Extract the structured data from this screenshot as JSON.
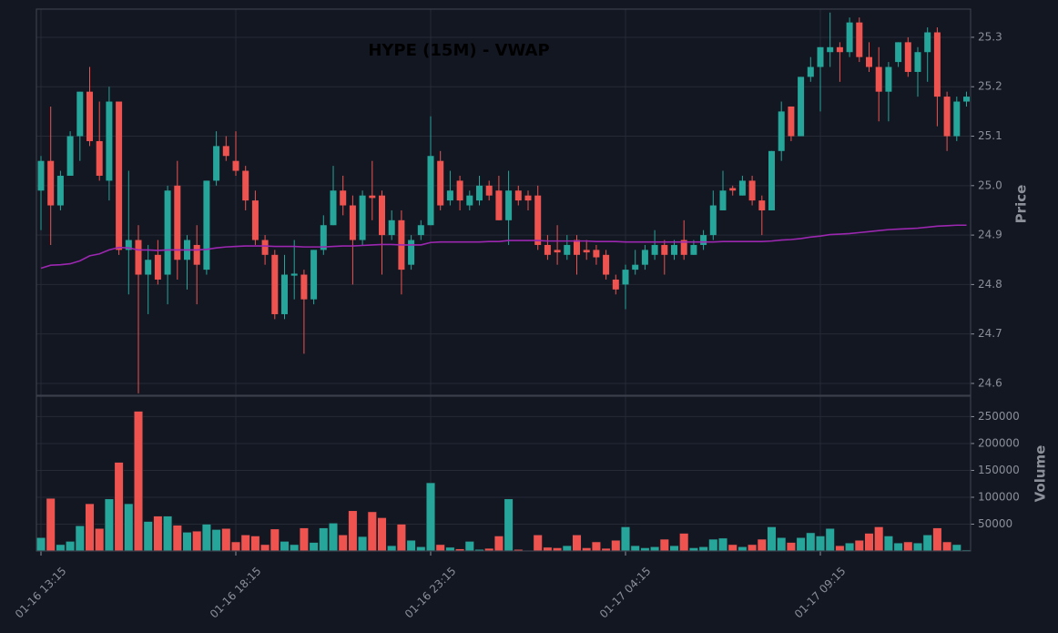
{
  "chart_data": [
    {
      "type": "candlestick",
      "title": "HYPE (15M) - VWAP",
      "ylabel": "Price",
      "categories": [
        "01-16 13:15",
        null,
        null,
        null,
        null,
        null,
        null,
        null,
        null,
        null,
        null,
        null,
        null,
        null,
        null,
        null,
        null,
        null,
        null,
        null,
        "01-16 18:15",
        null,
        null,
        null,
        null,
        null,
        null,
        null,
        null,
        null,
        null,
        null,
        null,
        null,
        null,
        null,
        null,
        null,
        null,
        null,
        "01-16 23:15",
        null,
        null,
        null,
        null,
        null,
        null,
        null,
        null,
        null,
        null,
        null,
        null,
        null,
        null,
        null,
        null,
        null,
        null,
        null,
        "01-17 04:15",
        null,
        null,
        null,
        null,
        null,
        null,
        null,
        null,
        null,
        null,
        null,
        null,
        null,
        null,
        null,
        null,
        null,
        null,
        null,
        "01-17 09:15",
        null,
        null,
        null,
        null,
        null,
        null,
        null,
        null,
        null,
        null,
        null,
        null,
        null,
        null,
        null
      ],
      "open": [
        24.99,
        25.05,
        24.96,
        25.02,
        25.1,
        25.19,
        25.09,
        25.01,
        25.17,
        24.87,
        24.89,
        24.82,
        24.86,
        24.82,
        25.0,
        24.85,
        24.88,
        24.83,
        25.01,
        25.08,
        25.05,
        25.03,
        24.97,
        24.89,
        24.86,
        24.74,
        24.818,
        24.82,
        24.77,
        24.87,
        24.92,
        24.99,
        24.96,
        24.89,
        24.98,
        24.98,
        24.9,
        24.93,
        24.84,
        24.9,
        24.92,
        25.05,
        24.97,
        25.01,
        24.96,
        24.97,
        25.0,
        24.99,
        24.93,
        24.99,
        24.98,
        24.98,
        24.88,
        24.87,
        24.86,
        24.89,
        24.87,
        24.87,
        24.86,
        24.81,
        24.8,
        24.83,
        24.84,
        24.86,
        24.88,
        24.86,
        24.89,
        24.86,
        24.88,
        24.9,
        24.95,
        24.995,
        24.98,
        25.01,
        24.97,
        24.95,
        25.07,
        25.16,
        25.1,
        25.22,
        25.24,
        25.27,
        25.28,
        25.27,
        25.33,
        25.26,
        25.24,
        25.19,
        25.25,
        25.29,
        25.23,
        25.27,
        25.31,
        25.18,
        25.1,
        25.17
      ],
      "high": [
        25.06,
        25.16,
        25.03,
        25.11,
        25.19,
        25.24,
        25.17,
        25.2,
        25.17,
        25.03,
        24.92,
        24.88,
        24.89,
        25.0,
        25.05,
        24.9,
        24.92,
        25.01,
        25.11,
        25.1,
        25.11,
        25.04,
        24.99,
        24.9,
        24.87,
        24.86,
        24.89,
        24.83,
        24.87,
        24.94,
        25.04,
        25.02,
        24.98,
        24.99,
        25.05,
        24.99,
        24.95,
        24.95,
        24.9,
        24.93,
        25.14,
        25.07,
        25.03,
        25.02,
        24.99,
        25.02,
        25.01,
        25.02,
        25.03,
        25.0,
        24.99,
        25.0,
        24.9,
        24.92,
        24.9,
        24.9,
        24.89,
        24.88,
        24.87,
        24.82,
        24.84,
        24.87,
        24.88,
        24.91,
        24.89,
        24.89,
        24.93,
        24.89,
        24.91,
        24.99,
        25.03,
        25.0,
        25.02,
        25.02,
        24.98,
        25.07,
        25.17,
        25.16,
        25.22,
        25.26,
        25.28,
        25.35,
        25.29,
        25.34,
        25.34,
        25.29,
        25.28,
        25.25,
        25.29,
        25.3,
        25.28,
        25.32,
        25.32,
        25.19,
        25.18,
        25.19
      ],
      "low": [
        24.91,
        24.88,
        24.95,
        25.02,
        25.05,
        25.08,
        25.01,
        24.97,
        24.86,
        24.78,
        24.58,
        24.74,
        24.8,
        24.76,
        24.81,
        24.79,
        24.76,
        24.82,
        25.0,
        25.05,
        25.02,
        24.95,
        24.88,
        24.84,
        24.73,
        24.73,
        24.77,
        24.66,
        24.76,
        24.86,
        24.92,
        24.94,
        24.8,
        24.88,
        24.93,
        24.82,
        24.89,
        24.78,
        24.83,
        24.89,
        24.92,
        24.95,
        24.96,
        24.95,
        24.95,
        24.96,
        24.97,
        24.93,
        24.88,
        24.96,
        24.95,
        24.87,
        24.85,
        24.84,
        24.85,
        24.82,
        24.85,
        24.84,
        24.81,
        24.78,
        24.75,
        24.82,
        24.83,
        24.85,
        24.82,
        24.85,
        24.85,
        24.86,
        24.87,
        24.89,
        24.95,
        24.98,
        24.98,
        24.96,
        24.9,
        24.95,
        25.05,
        25.09,
        25.1,
        25.21,
        25.15,
        25.24,
        25.21,
        25.26,
        25.25,
        25.23,
        25.13,
        25.13,
        25.24,
        25.22,
        25.18,
        25.21,
        25.12,
        25.07,
        25.09,
        25.16
      ],
      "close": [
        25.05,
        24.96,
        25.02,
        25.1,
        25.19,
        25.09,
        25.02,
        25.17,
        24.87,
        24.89,
        24.82,
        24.85,
        24.81,
        24.99,
        24.85,
        24.89,
        24.84,
        25.01,
        25.08,
        25.06,
        25.03,
        24.97,
        24.89,
        24.86,
        24.74,
        24.82,
        24.822,
        24.77,
        24.87,
        24.92,
        24.99,
        24.96,
        24.89,
        24.98,
        24.975,
        24.9,
        24.93,
        24.83,
        24.89,
        24.92,
        25.06,
        24.96,
        24.99,
        24.97,
        24.98,
        25.0,
        24.98,
        24.93,
        24.99,
        24.97,
        24.97,
        24.88,
        24.86,
        24.865,
        24.88,
        24.86,
        24.865,
        24.855,
        24.82,
        24.79,
        24.83,
        24.84,
        24.87,
        24.88,
        24.86,
        24.88,
        24.86,
        24.88,
        24.9,
        24.96,
        24.99,
        24.99,
        25.01,
        24.97,
        24.95,
        25.07,
        25.15,
        25.1,
        25.22,
        25.24,
        25.28,
        25.28,
        25.27,
        25.33,
        25.26,
        25.24,
        25.19,
        25.24,
        25.29,
        25.23,
        25.27,
        25.31,
        25.18,
        25.1,
        25.17,
        25.18
      ],
      "up_color": "#26a69a",
      "down_color": "#ef5350",
      "series": [
        {
          "color": "#9c27b0",
          "values": [
            24.833,
            24.839,
            24.84,
            24.842,
            24.848,
            24.858,
            24.862,
            24.87,
            24.875,
            24.874,
            24.87,
            24.87,
            24.869,
            24.87,
            24.87,
            24.87,
            24.87,
            24.871,
            24.874,
            24.876,
            24.877,
            24.878,
            24.878,
            24.878,
            24.877,
            24.877,
            24.877,
            24.876,
            24.876,
            24.876,
            24.877,
            24.878,
            24.878,
            24.879,
            24.88,
            24.881,
            24.881,
            24.88,
            24.88,
            24.88,
            24.885,
            24.886,
            24.886,
            24.886,
            24.886,
            24.886,
            24.887,
            24.887,
            24.889,
            24.889,
            24.889,
            24.889,
            24.888,
            24.888,
            24.888,
            24.888,
            24.888,
            24.887,
            24.887,
            24.887,
            24.886,
            24.886,
            24.886,
            24.886,
            24.886,
            24.886,
            24.886,
            24.886,
            24.886,
            24.886,
            24.887,
            24.887,
            24.887,
            24.887,
            24.887,
            24.888,
            24.89,
            24.891,
            24.893,
            24.896,
            24.898,
            24.901,
            24.902,
            24.903,
            24.905,
            24.907,
            24.909,
            24.911,
            24.912,
            24.913,
            24.914,
            24.916,
            24.918,
            24.919,
            24.92,
            24.92
          ]
        }
      ],
      "ylim": [
        24.576,
        25.357
      ],
      "yticks": [
        24.6,
        24.7,
        24.8,
        24.9,
        {
          "value": 25,
          "label": "25.0"
        },
        25.1,
        25.2,
        25.3
      ],
      "grid": true
    },
    {
      "type": "bar",
      "ylabel": "Volume",
      "values": [
        25000,
        98000,
        12000,
        18000,
        47000,
        88000,
        42000,
        97000,
        165000,
        88000,
        260000,
        55000,
        65000,
        65000,
        48000,
        35000,
        37000,
        50000,
        40000,
        42000,
        17000,
        30000,
        28000,
        12000,
        41000,
        18000,
        12000,
        43000,
        16000,
        43000,
        52000,
        30000,
        75000,
        27000,
        73000,
        62000,
        10000,
        50000,
        20000,
        8000,
        127000,
        12000,
        7000,
        4000,
        18000,
        3000,
        5000,
        28000,
        97000,
        3000,
        1000,
        30000,
        7000,
        6000,
        10000,
        30000,
        6000,
        17000,
        5000,
        20000,
        45000,
        10000,
        6000,
        8000,
        22000,
        10000,
        33000,
        6000,
        8000,
        22000,
        24000,
        12000,
        8000,
        12000,
        22000,
        45000,
        25000,
        16000,
        25000,
        34000,
        28000,
        42000,
        10000,
        15000,
        20000,
        33000,
        45000,
        28000,
        15000,
        17000,
        15000,
        30000,
        43000,
        17000,
        12000,
        2000
      ],
      "ylim": [
        0,
        288000
      ],
      "yticks": [
        50000,
        100000,
        150000,
        200000,
        250000
      ],
      "grid": true
    }
  ]
}
